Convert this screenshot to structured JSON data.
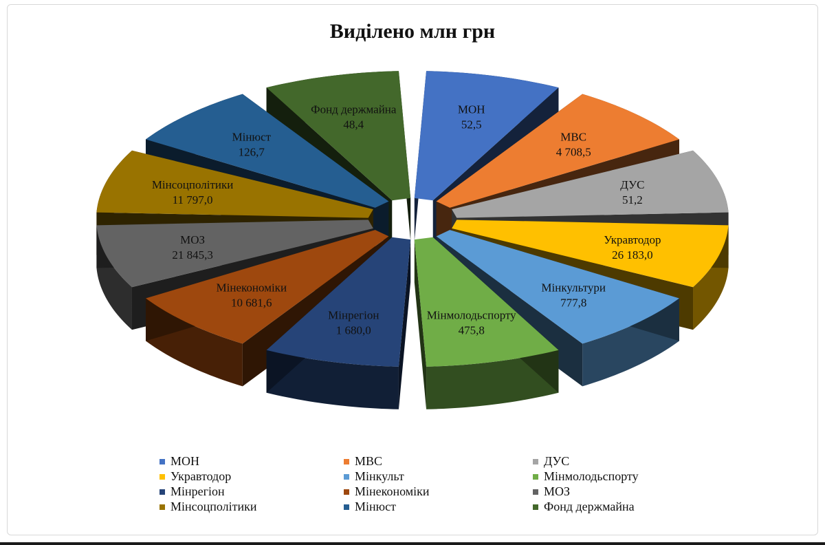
{
  "colors": {
    "МОН": "#4472C4",
    "МВС": "#ED7D31",
    "ДУС": "#A5A5A5",
    "Укравтодор": "#FFC000",
    "Мінкульт": "#5B9BD5",
    "Мінмолодьспорту": "#70AD47",
    "Мінрегіон": "#264478",
    "Мінекономіки": "#9E480E",
    "МОЗ": "#636363",
    "Мінсоцполітики": "#997300",
    "Мінюст": "#255E91",
    "Фонд держмайна": "#43682B"
  },
  "chart_data": {
    "type": "pie",
    "title": "Виділено млн грн",
    "legend_position": "bottom",
    "categories": [
      "МОН",
      "МВС",
      "ДУС",
      "Укравтодор",
      "Мінкульт",
      "Мінмолодьспорту",
      "Мінрегіон",
      "Мінекономіки",
      "МОЗ",
      "Мінсоцполітики",
      "Мінюст",
      "Фонд держмайна"
    ],
    "values": [
      52.5,
      4708.5,
      51.2,
      26183.0,
      777.8,
      475.8,
      1680.0,
      10681.6,
      21845.3,
      11797.0,
      126.7,
      48.4
    ],
    "slice_labels": [
      {
        "name": "МОН",
        "value": "52,5"
      },
      {
        "name": "МВС",
        "value": "4 708,5"
      },
      {
        "name": "ДУС",
        "value": "51,2"
      },
      {
        "name": "Укравтодор",
        "value": "26 183,0"
      },
      {
        "name": "Мінкультури",
        "value": "777,8"
      },
      {
        "name": "Мінмолодьспорту",
        "value": "475,8"
      },
      {
        "name": "Мінрегіон",
        "value": "1 680,0"
      },
      {
        "name": "Мінекономіки",
        "value": "10 681,6"
      },
      {
        "name": "МОЗ",
        "value": "21 845,3"
      },
      {
        "name": "Мінсоцполітики",
        "value": "11 797,0"
      },
      {
        "name": "Мінюст",
        "value": "126,7"
      },
      {
        "name": "Фонд держмайна",
        "value": "48,4"
      }
    ]
  }
}
